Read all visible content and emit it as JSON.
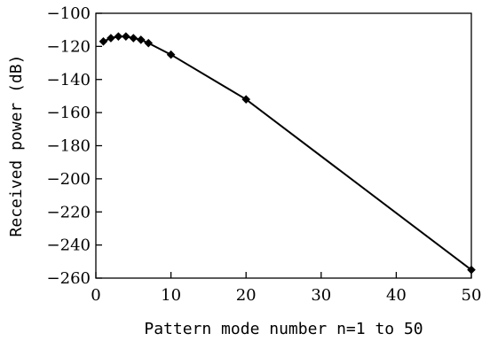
{
  "chart_data": {
    "type": "line",
    "title": "",
    "xlabel": "Pattern mode number n=1 to 50",
    "ylabel": "Received power (dB)",
    "xlim": [
      0,
      50
    ],
    "ylim": [
      -260,
      -100
    ],
    "xticks": [
      0,
      10,
      20,
      30,
      40,
      50
    ],
    "yticks": [
      -260,
      -240,
      -220,
      -200,
      -180,
      -160,
      -140,
      -120,
      -100
    ],
    "xtick_labels": [
      "0",
      "10",
      "20",
      "30",
      "40",
      "50"
    ],
    "ytick_labels": [
      "−260",
      "−240",
      "−220",
      "−200",
      "−180",
      "−160",
      "−140",
      "−120",
      "−100"
    ],
    "grid": false,
    "legend": "none",
    "series": [
      {
        "marker": "diamond",
        "color": "#000000",
        "x": [
          1,
          2,
          3,
          4,
          5,
          6,
          7,
          10,
          20,
          50
        ],
        "y": [
          -117,
          -115,
          -114,
          -114,
          -115,
          -116,
          -118,
          -125,
          -152,
          -255
        ]
      }
    ]
  }
}
